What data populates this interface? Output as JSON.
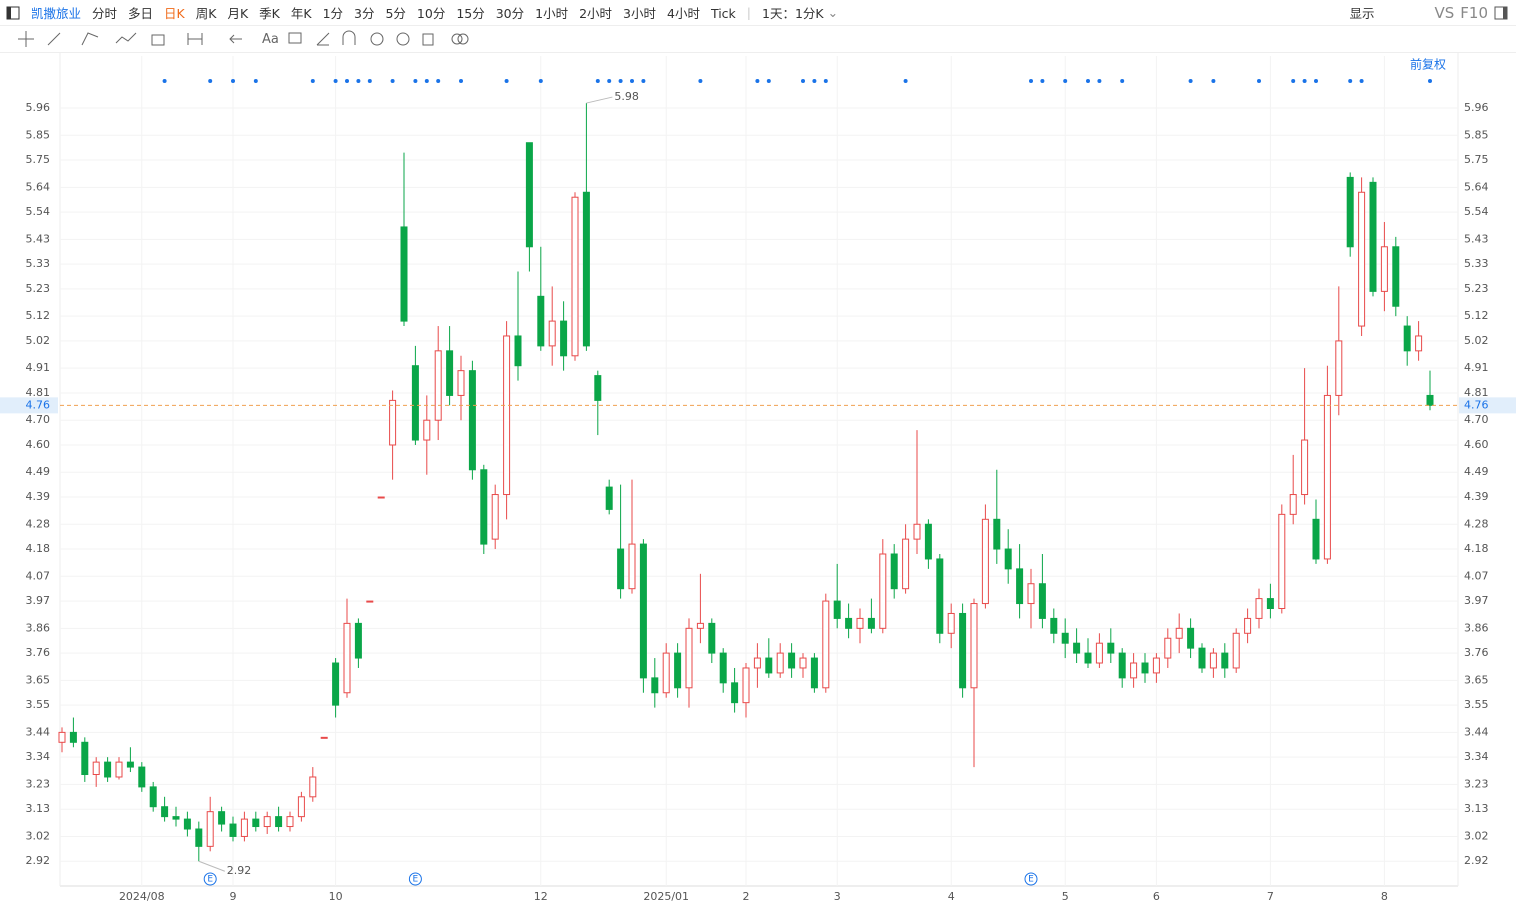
{
  "toolbar": {
    "stock": "凯撒旅业",
    "periods": [
      "分时",
      "多日",
      "日K",
      "周K",
      "月K",
      "季K",
      "年K",
      "1分",
      "3分",
      "5分",
      "10分",
      "15分",
      "30分",
      "1小时",
      "2小时",
      "3小时",
      "4小时",
      "Tick"
    ],
    "active": "日K",
    "interval": "1天：1分K",
    "display": "显示",
    "vs": "VS",
    "f10": "F10",
    "text_tool": "Aa",
    "adjust": "前复权"
  },
  "chart_data": {
    "type": "candlestick",
    "up_color": "#e84a4a",
    "down_color": "#0aa648",
    "grid": true,
    "ylim": [
      2.82,
      6.17
    ],
    "yticks": [
      2.92,
      3.02,
      3.13,
      3.23,
      3.34,
      3.44,
      3.55,
      3.65,
      3.76,
      3.86,
      3.97,
      4.07,
      4.18,
      4.28,
      4.39,
      4.49,
      {
        "value": 4.6,
        "label": "4.60"
      },
      {
        "value": 4.7,
        "label": "4.70"
      },
      4.81,
      4.91,
      5.02,
      5.12,
      5.23,
      5.33,
      5.43,
      5.54,
      5.64,
      5.75,
      5.85,
      5.96
    ],
    "last_price": 4.76,
    "high_label": 5.98,
    "low_label": 2.92,
    "event_label": "E",
    "categories": [
      null,
      null,
      null,
      null,
      null,
      null,
      null,
      "2024/08",
      null,
      null,
      null,
      null,
      null,
      null,
      null,
      "9",
      null,
      null,
      null,
      null,
      null,
      null,
      null,
      null,
      "10",
      null,
      null,
      null,
      null,
      null,
      null,
      null,
      null,
      null,
      null,
      null,
      null,
      null,
      null,
      null,
      null,
      null,
      "12",
      null,
      null,
      null,
      null,
      null,
      null,
      null,
      null,
      null,
      null,
      "2025/01",
      null,
      null,
      null,
      null,
      null,
      null,
      "2",
      null,
      null,
      null,
      null,
      null,
      null,
      null,
      "3",
      null,
      null,
      null,
      null,
      null,
      null,
      null,
      null,
      null,
      "4",
      null,
      null,
      null,
      null,
      null,
      null,
      null,
      null,
      null,
      "5",
      null,
      null,
      null,
      null,
      null,
      null,
      null,
      "6",
      null,
      null,
      null,
      null,
      null,
      null,
      null,
      null,
      null,
      "7",
      null,
      null,
      null,
      null,
      null,
      null,
      null,
      null,
      null,
      "8",
      null,
      null,
      null,
      null
    ],
    "open": [
      3.4,
      3.44,
      3.4,
      3.27,
      3.32,
      3.26,
      3.32,
      3.3,
      3.22,
      3.14,
      3.1,
      3.09,
      3.05,
      2.98,
      3.12,
      3.07,
      3.02,
      3.09,
      3.06,
      3.1,
      3.06,
      3.1,
      3.18,
      3.42,
      3.72,
      3.6,
      3.88,
      3.97,
      4.39,
      4.6,
      5.48,
      4.92,
      4.62,
      4.7,
      4.98,
      4.8,
      4.9,
      4.5,
      4.22,
      4.4,
      5.04,
      5.82,
      5.2,
      5.0,
      5.1,
      4.96,
      5.62,
      4.88,
      4.43,
      4.18,
      4.02,
      4.2,
      3.66,
      3.6,
      3.76,
      3.62,
      3.86,
      3.88,
      3.76,
      3.64,
      3.56,
      3.7,
      3.74,
      3.68,
      3.76,
      3.7,
      3.74,
      3.62,
      3.97,
      3.9,
      3.86,
      3.9,
      3.86,
      4.16,
      4.02,
      4.22,
      4.28,
      4.14,
      3.84,
      3.92,
      3.62,
      3.96,
      4.3,
      4.18,
      4.1,
      3.96,
      4.04,
      3.9,
      3.84,
      3.8,
      3.76,
      3.72,
      3.8,
      3.76,
      3.66,
      3.72,
      3.68,
      3.74,
      3.82,
      3.86,
      3.78,
      3.7,
      3.76,
      3.7,
      3.84,
      3.9,
      3.98,
      3.94,
      4.32,
      4.4,
      4.3,
      4.14,
      4.8,
      5.68,
      5.08,
      5.66,
      5.22,
      5.4,
      5.08,
      4.98,
      4.8
    ],
    "high": [
      3.46,
      3.5,
      3.42,
      3.34,
      3.34,
      3.34,
      3.38,
      3.32,
      3.24,
      3.18,
      3.14,
      3.12,
      3.08,
      3.18,
      3.14,
      3.1,
      3.12,
      3.12,
      3.12,
      3.14,
      3.12,
      3.2,
      3.3,
      3.42,
      3.74,
      3.98,
      3.9,
      3.97,
      4.39,
      4.82,
      5.78,
      5.0,
      4.8,
      5.08,
      5.08,
      4.96,
      4.94,
      4.52,
      4.44,
      5.1,
      5.3,
      5.82,
      5.4,
      5.24,
      5.18,
      5.62,
      5.98,
      4.9,
      4.46,
      4.44,
      4.46,
      4.22,
      3.74,
      3.8,
      3.8,
      3.9,
      4.08,
      3.9,
      3.78,
      3.7,
      3.72,
      3.8,
      3.82,
      3.8,
      3.8,
      3.76,
      3.76,
      4.0,
      4.12,
      3.96,
      3.94,
      3.98,
      4.22,
      4.2,
      4.28,
      4.66,
      4.3,
      4.16,
      3.96,
      3.96,
      3.98,
      4.36,
      4.5,
      4.26,
      4.2,
      4.1,
      4.16,
      3.94,
      3.9,
      3.86,
      3.82,
      3.84,
      3.86,
      3.78,
      3.76,
      3.76,
      3.76,
      3.86,
      3.92,
      3.9,
      3.8,
      3.78,
      3.8,
      3.86,
      3.94,
      4.02,
      4.04,
      4.36,
      4.56,
      4.91,
      4.38,
      4.92,
      5.24,
      5.7,
      5.68,
      5.68,
      5.5,
      5.44,
      5.12,
      5.1,
      4.9
    ],
    "low": [
      3.36,
      3.38,
      3.24,
      3.22,
      3.24,
      3.25,
      3.28,
      3.2,
      3.12,
      3.08,
      3.06,
      3.02,
      2.92,
      2.96,
      3.04,
      3.0,
      3.0,
      3.04,
      3.03,
      3.04,
      3.04,
      3.08,
      3.16,
      3.42,
      3.5,
      3.58,
      3.7,
      3.97,
      4.39,
      4.46,
      5.08,
      4.6,
      4.48,
      4.62,
      4.76,
      4.7,
      4.46,
      4.16,
      4.18,
      4.3,
      4.86,
      5.3,
      4.98,
      4.92,
      4.9,
      4.94,
      4.98,
      4.64,
      4.32,
      3.98,
      4.0,
      3.6,
      3.54,
      3.58,
      3.58,
      3.54,
      3.8,
      3.72,
      3.6,
      3.52,
      3.5,
      3.62,
      3.66,
      3.66,
      3.66,
      3.66,
      3.6,
      3.6,
      3.86,
      3.82,
      3.8,
      3.84,
      3.84,
      3.98,
      4.0,
      4.16,
      4.1,
      3.8,
      3.78,
      3.58,
      3.3,
      3.94,
      4.12,
      4.04,
      3.9,
      3.86,
      3.86,
      3.8,
      3.74,
      3.72,
      3.7,
      3.7,
      3.72,
      3.62,
      3.62,
      3.64,
      3.64,
      3.7,
      3.76,
      3.74,
      3.68,
      3.66,
      3.66,
      3.68,
      3.8,
      3.86,
      3.9,
      3.92,
      4.28,
      4.36,
      4.12,
      4.12,
      4.72,
      5.36,
      5.04,
      5.2,
      5.14,
      5.12,
      4.92,
      4.94,
      4.74
    ],
    "close": [
      3.44,
      3.4,
      3.27,
      3.32,
      3.26,
      3.32,
      3.3,
      3.22,
      3.14,
      3.1,
      3.09,
      3.05,
      2.98,
      3.12,
      3.07,
      3.02,
      3.09,
      3.06,
      3.1,
      3.06,
      3.1,
      3.18,
      3.26,
      3.42,
      3.55,
      3.88,
      3.74,
      3.97,
      4.39,
      4.78,
      5.1,
      4.62,
      4.7,
      4.98,
      4.8,
      4.9,
      4.5,
      4.2,
      4.4,
      5.04,
      4.92,
      5.4,
      5.0,
      5.1,
      4.96,
      5.6,
      5.0,
      4.78,
      4.34,
      4.02,
      4.2,
      3.66,
      3.6,
      3.76,
      3.62,
      3.86,
      3.88,
      3.76,
      3.64,
      3.56,
      3.7,
      3.74,
      3.68,
      3.76,
      3.7,
      3.74,
      3.62,
      3.97,
      3.9,
      3.86,
      3.9,
      3.86,
      4.16,
      4.02,
      4.22,
      4.28,
      4.14,
      3.84,
      3.92,
      3.62,
      3.96,
      4.3,
      4.18,
      4.1,
      3.96,
      4.04,
      3.9,
      3.84,
      3.8,
      3.76,
      3.72,
      3.8,
      3.76,
      3.66,
      3.72,
      3.68,
      3.74,
      3.82,
      3.86,
      3.78,
      3.7,
      3.76,
      3.7,
      3.84,
      3.9,
      3.98,
      3.94,
      4.32,
      4.4,
      4.62,
      4.14,
      4.8,
      5.02,
      5.4,
      5.62,
      5.22,
      5.4,
      5.16,
      4.98,
      5.04,
      4.76
    ]
  }
}
